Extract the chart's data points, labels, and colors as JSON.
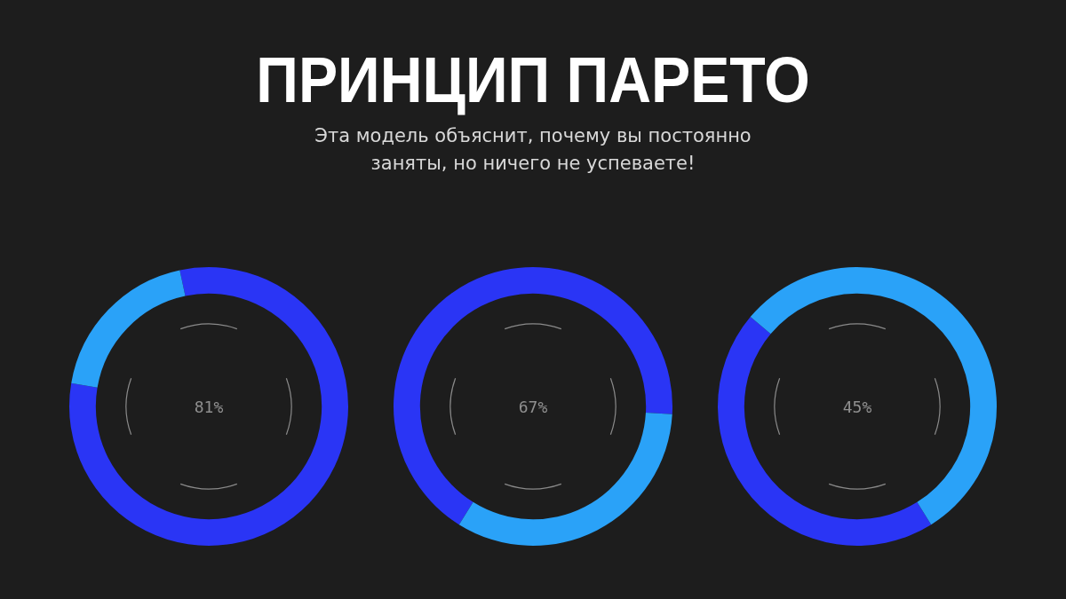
{
  "chart_data": [
    {
      "type": "other",
      "title": "ПРИНЦИП ПАРЕТО",
      "subtitle": "Эта модель объяснит, почему вы постоянно\nзаняты, но ничего не успеваете!"
    },
    {
      "type": "donut",
      "categories": [
        null,
        null
      ],
      "values": [
        81,
        19
      ],
      "colors": [
        "#2a35f5",
        "#2aa2f8"
      ],
      "annotations": [
        "81%"
      ]
    },
    {
      "type": "donut",
      "categories": [
        null,
        null
      ],
      "values": [
        67,
        33
      ],
      "colors": [
        "#2a35f5",
        "#2aa2f8"
      ],
      "annotations": [
        "67%"
      ]
    },
    {
      "type": "donut",
      "categories": [
        null,
        null
      ],
      "values": [
        45,
        55
      ],
      "colors": [
        "#2a35f5",
        "#2aa2f8"
      ],
      "annotations": [
        "45%"
      ]
    }
  ]
}
